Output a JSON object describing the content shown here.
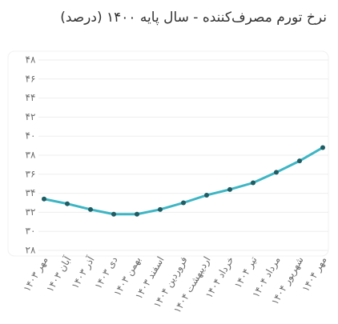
{
  "chart_data": {
    "type": "line",
    "title": "نرخ تورم مصرف‌کننده - سال پایه ۱۴۰۰ (درصد)",
    "categories": [
      "مهر ۱۴۰۳",
      "آبان ۱۴۰۳",
      "آذر ۱۴۰۳",
      "دی ۱۴۰۳",
      "بهمن ۱۴۰۳",
      "اسفند ۱۴۰۳",
      "فروردین ۱۴۰۴",
      "اردیبهشت ۱۴۰۴",
      "خرداد ۱۴۰۴",
      "تیر ۱۴۰۴",
      "مرداد ۱۴۰۴",
      "شهریور ۱۴۰۴",
      "مهر ۱۴۰۴"
    ],
    "values": [
      33.4,
      32.9,
      32.3,
      31.8,
      31.8,
      32.3,
      33.0,
      33.8,
      34.4,
      35.1,
      36.2,
      37.4,
      38.8
    ],
    "color": "#3db5c4",
    "marker_color": "#1e5d64",
    "ylim": [
      28,
      48
    ],
    "yticks": [
      {
        "value": 28,
        "label": "۲۸"
      },
      {
        "value": 30,
        "label": "۳۰"
      },
      {
        "value": 32,
        "label": "۳۲"
      },
      {
        "value": 34,
        "label": "۳۴"
      },
      {
        "value": 36,
        "label": "۳۶"
      },
      {
        "value": 38,
        "label": "۳۸"
      },
      {
        "value": 40,
        "label": "۴۰"
      },
      {
        "value": 42,
        "label": "۴۲"
      },
      {
        "value": 44,
        "label": "۴۴"
      },
      {
        "value": 46,
        "label": "۴۶"
      },
      {
        "value": 48,
        "label": "۴۸"
      }
    ],
    "grid": true
  }
}
